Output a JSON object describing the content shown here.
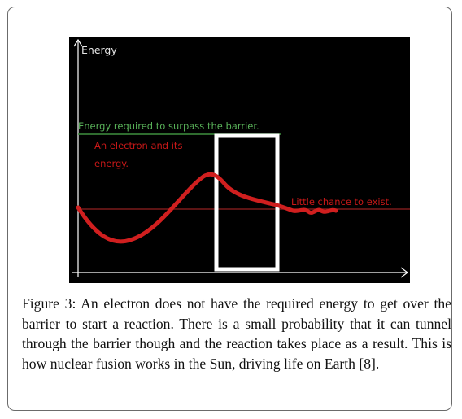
{
  "figure": {
    "axis_label": "Energy",
    "barrier_label": "Energy required to surpass the barrier.",
    "electron_label_line1": "An electron and its",
    "electron_label_line2": "energy.",
    "tunnel_label": "Little chance to exist."
  },
  "caption": {
    "label": "Figure 3:",
    "text": " An electron does not have the required energy to get over the barrier to start a reaction. There is a small probability that it can tunnel through the barrier though and the reaction takes place as a result. This is how nuclear fusion works in the Sun, driving life on Earth [8]."
  },
  "colors": {
    "background": "#000000",
    "axes": "#ffffff",
    "barrier": "#ffffff",
    "barrier_level": "#3f8f3f",
    "barrier_text": "#58b058",
    "wave": "#d01f1f",
    "electron_text": "#c81818",
    "energy_line": "#7a1a1a"
  }
}
